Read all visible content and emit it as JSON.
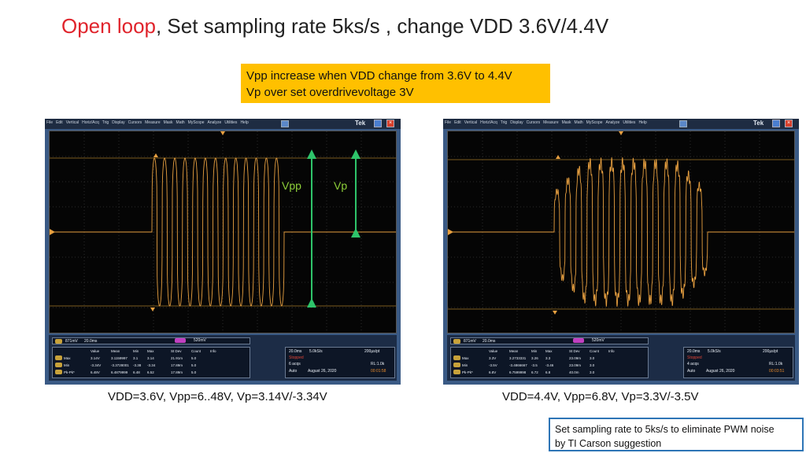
{
  "title": {
    "highlight": "Open loop",
    "rest": ", Set sampling rate 5ks/s , change VDD 3.6V/4.4V"
  },
  "note": {
    "line1": "Vpp increase when VDD change from 3.6V to 4.4V",
    "line2": "Vp over set overdrivevoltage 3V"
  },
  "menu_items": [
    "File",
    "Edit",
    "Vertical",
    "Horiz/Acq",
    "Trig",
    "Display",
    "Cursors",
    "Measure",
    "Mask",
    "Math",
    "MyScope",
    "Analyze",
    "Utilities",
    "Help"
  ],
  "brand": "Tek",
  "labels": {
    "vpp": "Vpp",
    "vp": "Vp"
  },
  "scope1": {
    "ch_scale": "871mV",
    "time_div": "20.0ms",
    "math_scale": "520mV",
    "horiz": "20.0ms",
    "rate": "5.0kS/s",
    "pts": "200µs/pt",
    "stopped": "Stopped",
    "acqs": "6 acqs",
    "rl": "RL:1.0k",
    "mode": "Auto",
    "date": "August 26, 2020",
    "time": "00:01:58",
    "headers": [
      "Value",
      "Mean",
      "Min",
      "Max",
      "St Dev",
      "Count",
      "Info"
    ],
    "rows": [
      {
        "name": "Max",
        "vals": [
          "3.14V",
          "3.1159997",
          "3.1",
          "3.14",
          "21.91m",
          "5.0"
        ]
      },
      {
        "name": "Min",
        "vals": [
          "-3.34V",
          "-3.3728001",
          "-3.38",
          "-3.34",
          "17.89m",
          "5.0"
        ]
      },
      {
        "name": "Pk-Pk*",
        "vals": [
          "6.48V",
          "6.4879999",
          "6.48",
          "6.52",
          "17.89m",
          "5.0"
        ]
      }
    ],
    "caption": "VDD=3.6V, Vpp=6..48V, Vp=3.14V/-3.34V"
  },
  "scope2": {
    "ch_scale": "871mV",
    "time_div": "20.0ms",
    "math_scale": "520mV",
    "horiz": "20.0ms",
    "rate": "5.0kS/s",
    "pts": "200µs/pt",
    "stopped": "Stopped",
    "acqs": "4 acqs",
    "rl": "RL:1.0k",
    "mode": "Auto",
    "date": "August 26, 2020",
    "time": "00:03:51",
    "headers": [
      "Value",
      "Mean",
      "Min",
      "Max",
      "St Dev",
      "Count",
      "Info"
    ],
    "rows": [
      {
        "name": "Max",
        "vals": [
          "3.3V",
          "3.2733331",
          "3.26",
          "3.3",
          "23.09m",
          "3.0"
        ]
      },
      {
        "name": "Min",
        "vals": [
          "-3.5V",
          "-3.4866667",
          "-3.5",
          "-3.46",
          "23.09m",
          "3.0"
        ]
      },
      {
        "name": "Pk-Pk*",
        "vals": [
          "6.8V",
          "6.7599998",
          "6.72",
          "6.8",
          "40.0m",
          "3.0"
        ]
      }
    ],
    "caption": "VDD=4.4V, Vpp=6.8V, Vp=3.3V/-3.5V"
  },
  "bottom_note": {
    "line1": "Set sampling rate to 5ks/s to eliminate PWM noise",
    "line2": "by TI Carson suggestion"
  },
  "colors": {
    "title_highlight": "#e0242c",
    "note_bg": "#ffc000",
    "trace": "#e8a040",
    "arrow": "#2ec46a",
    "label": "#8fd13a",
    "box_border": "#2e75b6"
  }
}
